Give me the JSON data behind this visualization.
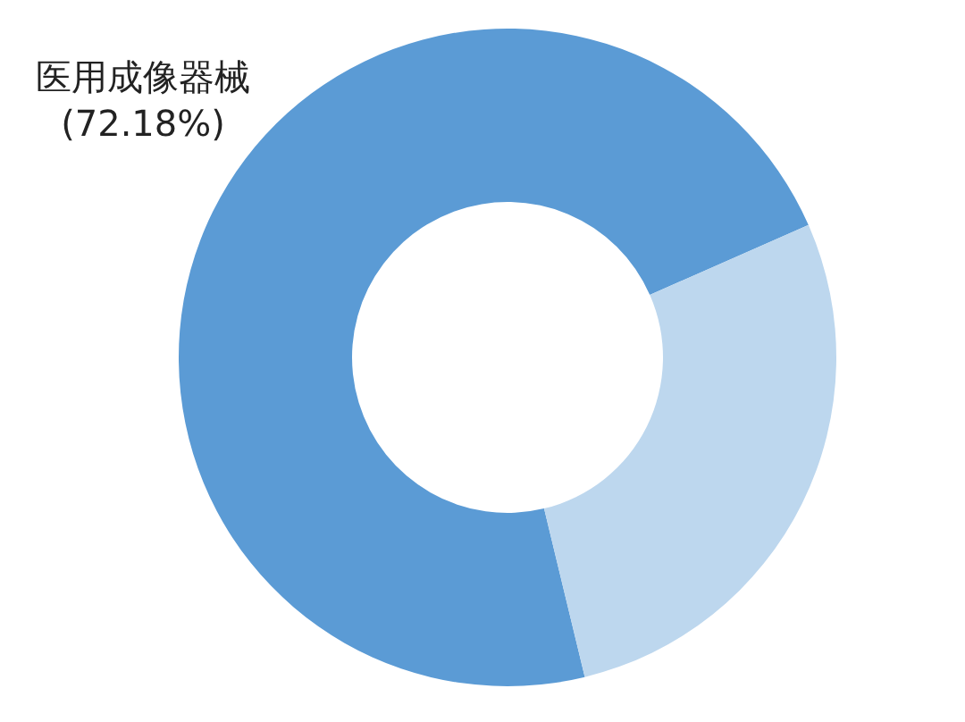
{
  "chart_data": {
    "type": "donut",
    "categories": [
      "医用成像器械",
      null
    ],
    "values": [
      72.18,
      27.82
    ],
    "colors": [
      "#5b9bd5",
      "#bdd7ee"
    ],
    "value_labels": [
      "(72.18%)",
      null
    ],
    "legend": false
  }
}
